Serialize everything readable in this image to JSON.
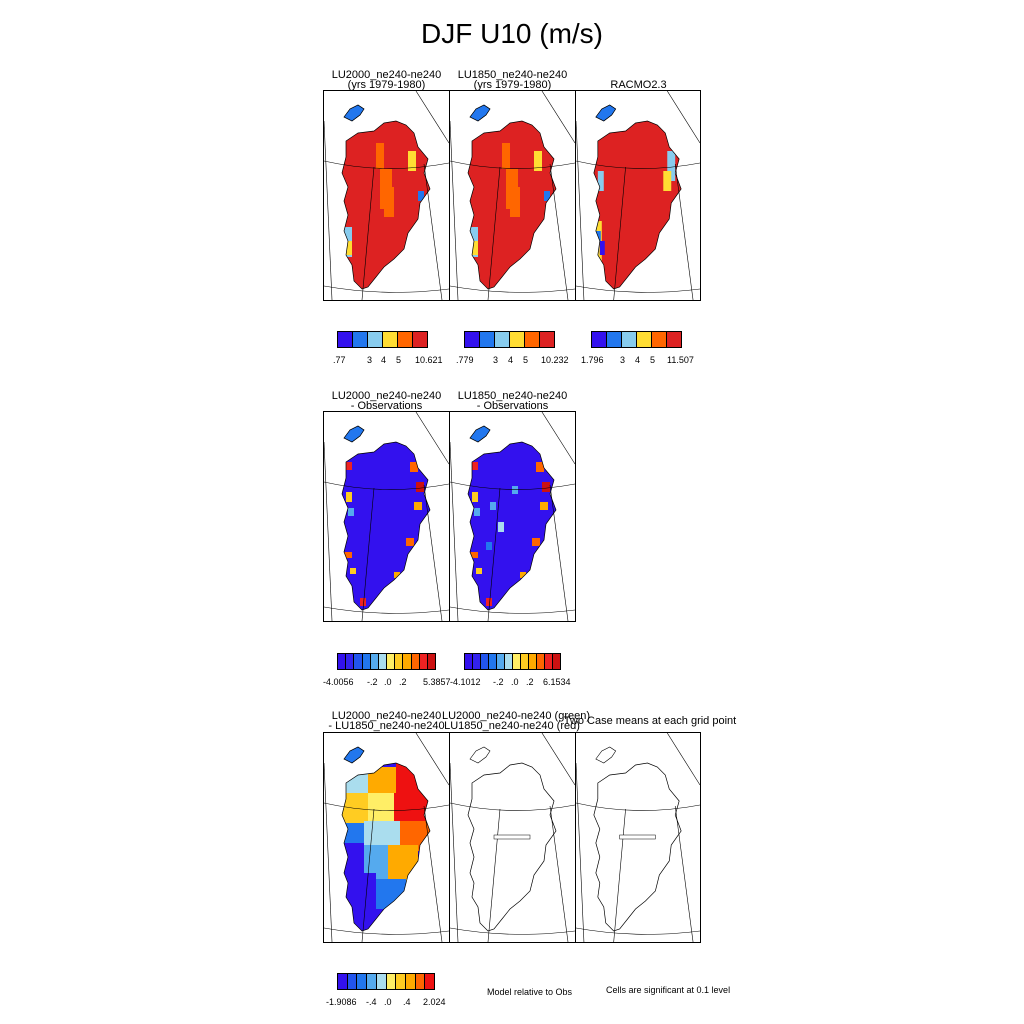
{
  "title": "DJF U10 (m/s)",
  "row1": {
    "panels": [
      {
        "title1": "LU2000_ne240-ne240",
        "title2": "(yrs 1979-1980)"
      },
      {
        "title1": "LU1850_ne240-ne240",
        "title2": "(yrs 1979-1980)"
      },
      {
        "title1": "RACMO2.3",
        "title2": ""
      }
    ],
    "colorbars": [
      {
        "labels": [
          ".77",
          "3",
          "4",
          "5",
          "10.621"
        ]
      },
      {
        "labels": [
          ".779",
          "3",
          "4",
          "5",
          "10.232"
        ]
      },
      {
        "labels": [
          "1.796",
          "3",
          "4",
          "5",
          "11.507"
        ]
      }
    ]
  },
  "row2": {
    "panels": [
      {
        "title1": "LU2000_ne240-ne240",
        "title2": "- Observations"
      },
      {
        "title1": "LU1850_ne240-ne240",
        "title2": "- Observations"
      }
    ],
    "colorbars": [
      {
        "labels": [
          "-4.0056",
          "-.2",
          ".0",
          ".2",
          "5.3857"
        ]
      },
      {
        "labels": [
          "-4.1012",
          "-.2",
          ".0",
          ".2",
          "6.1534"
        ]
      }
    ]
  },
  "row3": {
    "panels": [
      {
        "title1": "LU2000_ne240-ne240",
        "title2": "- LU1850_ne240-ne240"
      },
      {
        "title1": "LU2000_ne240-ne240 (green)",
        "title2": "LU1850_ne240-ne240 (red)"
      },
      {
        "title1": "Two Case means at each grid point",
        "title2": ""
      }
    ],
    "colorbar": {
      "labels": [
        "-1.9086",
        "-.4",
        ".0",
        ".4",
        "2.024"
      ]
    },
    "notes": {
      "model_relative": "Model relative to Obs",
      "significance": "Cells are significant at 0.1 level"
    }
  },
  "colors": {
    "scale6": [
      "#3311ee",
      "#2277ee",
      "#88ccee",
      "#ffdd33",
      "#ff6600",
      "#dd2222"
    ],
    "scale12": [
      "#3311ee",
      "#3322ee",
      "#2255ee",
      "#2277ee",
      "#55aaee",
      "#aaddee",
      "#ffee66",
      "#ffcc22",
      "#ffaa00",
      "#ff6600",
      "#ee2222",
      "#cc1111"
    ],
    "diff10": [
      "#3311ee",
      "#2255ee",
      "#2277ee",
      "#55aaee",
      "#aaddee",
      "#ffee66",
      "#ffcc22",
      "#ffaa00",
      "#ff6600",
      "#ee1111"
    ]
  }
}
